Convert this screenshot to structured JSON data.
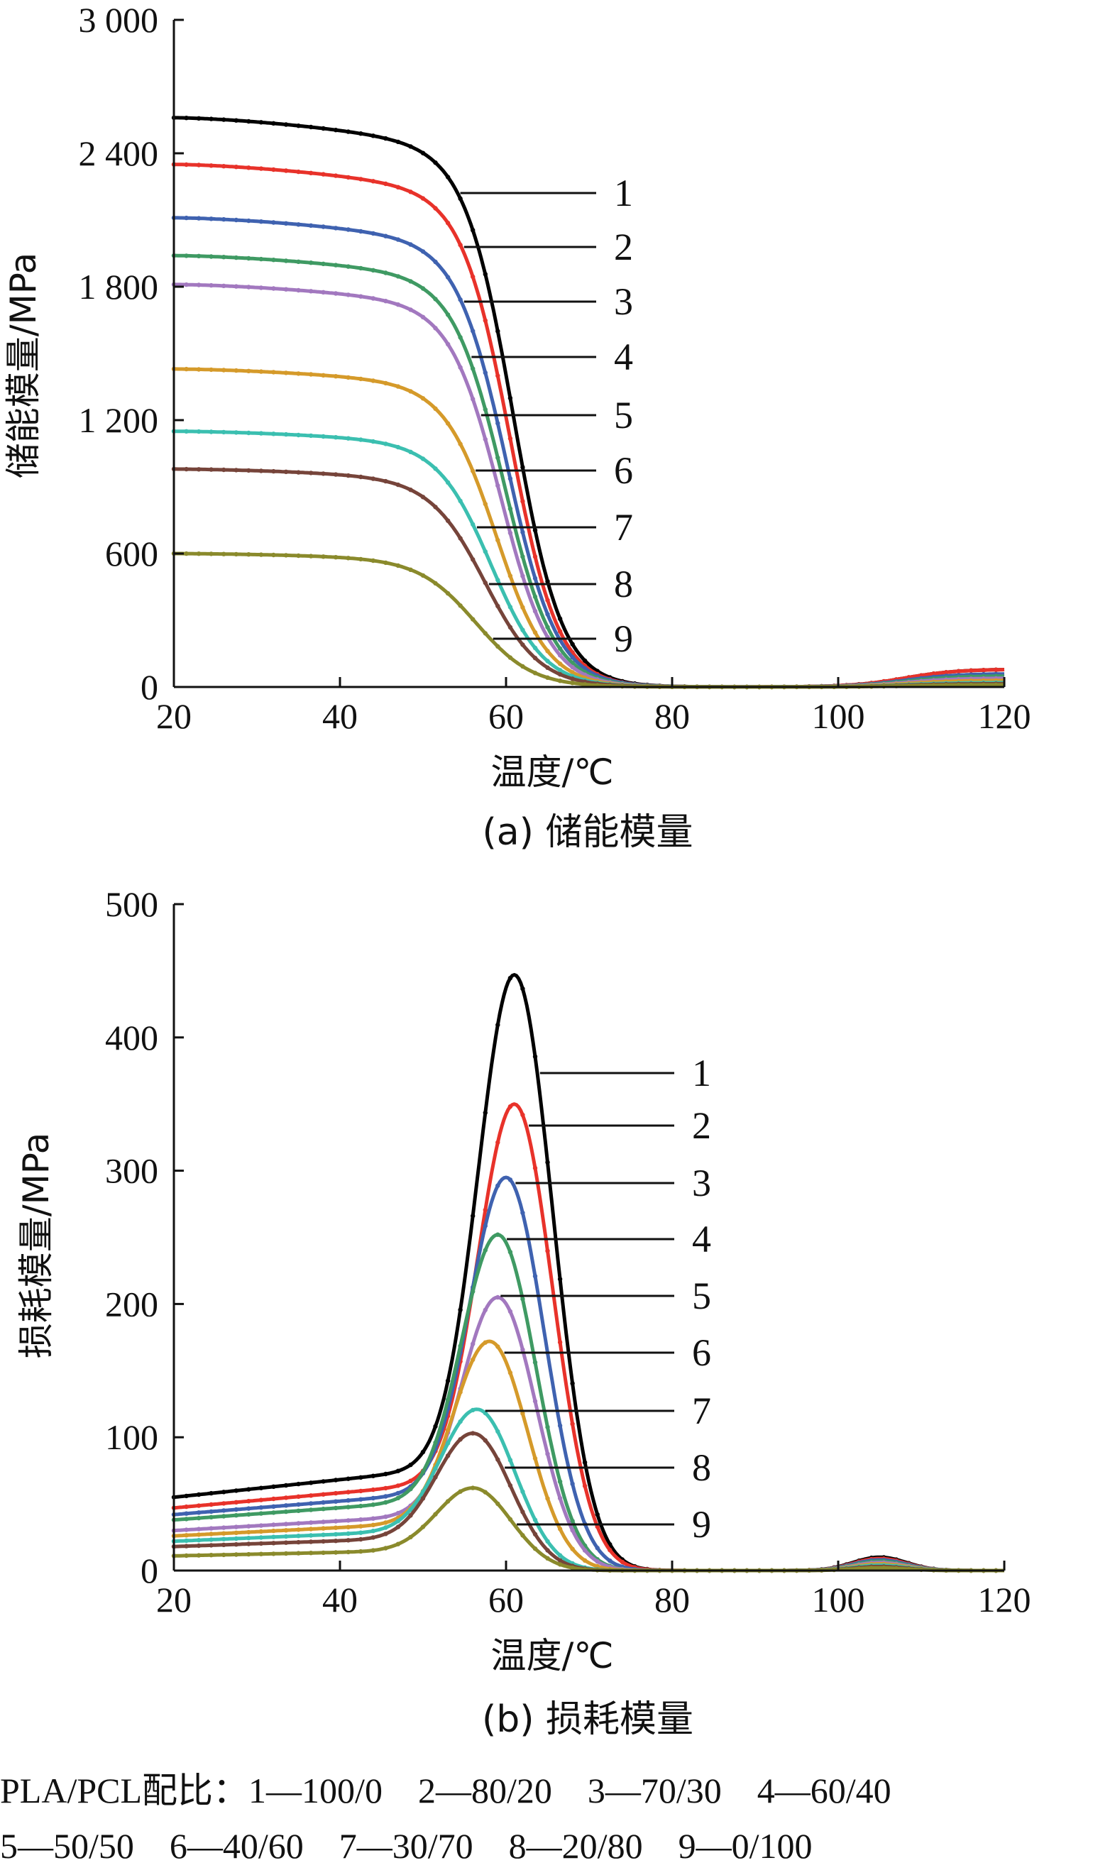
{
  "chart_data": [
    {
      "type": "line",
      "caption": "(a) 储能模量",
      "xlabel": "温度/℃",
      "ylabel": "储能模量/MPa",
      "xlim": [
        20,
        120
      ],
      "ylim": [
        0,
        3000
      ],
      "xticks": [
        20,
        40,
        60,
        80,
        100,
        120
      ],
      "xtick_labels": [
        "20",
        "40",
        "60",
        "80",
        "100",
        "120"
      ],
      "yticks": [
        0,
        600,
        1200,
        1800,
        2400,
        3000
      ],
      "ytick_labels": [
        "0",
        "600",
        "1 200",
        "1 800",
        "2 400",
        "3 000"
      ],
      "grid": false,
      "series": [
        {
          "name": "1",
          "color": "#000000",
          "plateau": 2560,
          "mid": 61.0,
          "width": 2.9,
          "tail": 80,
          "hump": 0
        },
        {
          "name": "2",
          "color": "#e8322a",
          "plateau": 2350,
          "mid": 60.6,
          "width": 2.9,
          "tail": 80,
          "hump": 0
        },
        {
          "name": "3",
          "color": "#3f62b0",
          "plateau": 2110,
          "mid": 60.2,
          "width": 3.0,
          "tail": 60,
          "hump": 0
        },
        {
          "name": "4",
          "color": "#3f9a63",
          "plateau": 1940,
          "mid": 59.8,
          "width": 3.0,
          "tail": 50,
          "hump": 0
        },
        {
          "name": "5",
          "color": "#a278bf",
          "plateau": 1810,
          "mid": 59.4,
          "width": 3.0,
          "tail": 40,
          "hump": 0
        },
        {
          "name": "6",
          "color": "#d59a2a",
          "plateau": 1430,
          "mid": 58.9,
          "width": 3.1,
          "tail": 30,
          "hump": 0
        },
        {
          "name": "7",
          "color": "#3bbfb0",
          "plateau": 1150,
          "mid": 58.3,
          "width": 3.2,
          "tail": 20,
          "hump": 0
        },
        {
          "name": "8",
          "color": "#76443a",
          "plateau": 980,
          "mid": 57.6,
          "width": 3.3,
          "tail": 15,
          "hump": 0
        },
        {
          "name": "9",
          "color": "#8a8a2c",
          "plateau": 600,
          "mid": 56.5,
          "width": 3.4,
          "tail": 10,
          "hump": 0
        }
      ]
    },
    {
      "type": "line",
      "caption": "(b) 损耗模量",
      "xlabel": "温度/℃",
      "ylabel": "损耗模量/MPa",
      "xlim": [
        20,
        120
      ],
      "ylim": [
        0,
        500
      ],
      "xticks": [
        20,
        40,
        60,
        80,
        100,
        120
      ],
      "xtick_labels": [
        "20",
        "40",
        "60",
        "80",
        "100",
        "120"
      ],
      "yticks": [
        0,
        100,
        200,
        300,
        400,
        500
      ],
      "ytick_labels": [
        "0",
        "100",
        "200",
        "300",
        "400",
        "500"
      ],
      "grid": false,
      "series": [
        {
          "name": "1",
          "color": "#000000",
          "base": 55,
          "peak": 447,
          "peak_x": 61.0,
          "hump": 10
        },
        {
          "name": "2",
          "color": "#e8322a",
          "base": 47,
          "peak": 350,
          "peak_x": 61.0,
          "hump": 9
        },
        {
          "name": "3",
          "color": "#3f62b0",
          "base": 42,
          "peak": 295,
          "peak_x": 60.0,
          "hump": 8
        },
        {
          "name": "4",
          "color": "#3f9a63",
          "base": 38,
          "peak": 252,
          "peak_x": 59.0,
          "hump": 7
        },
        {
          "name": "5",
          "color": "#a278bf",
          "base": 30,
          "peak": 205,
          "peak_x": 59.0,
          "hump": 6
        },
        {
          "name": "6",
          "color": "#d59a2a",
          "base": 26,
          "peak": 172,
          "peak_x": 58.0,
          "hump": 5
        },
        {
          "name": "7",
          "color": "#3bbfb0",
          "base": 22,
          "peak": 121,
          "peak_x": 56.5,
          "hump": 4
        },
        {
          "name": "8",
          "color": "#76443a",
          "base": 18,
          "peak": 103,
          "peak_x": 56.0,
          "hump": 3
        },
        {
          "name": "9",
          "color": "#8a8a2c",
          "base": 11,
          "peak": 62,
          "peak_x": 56.0,
          "hump": 2
        }
      ]
    }
  ],
  "labels": [
    "1",
    "2",
    "3",
    "4",
    "5",
    "6",
    "7",
    "8",
    "9"
  ],
  "footnote": {
    "line1": "PLA/PCL配比：1—100/0　2—80/20　3—70/30　4—60/40",
    "line2": "5—50/50　6—40/60　7—30/70　8—20/80　9—0/100"
  }
}
